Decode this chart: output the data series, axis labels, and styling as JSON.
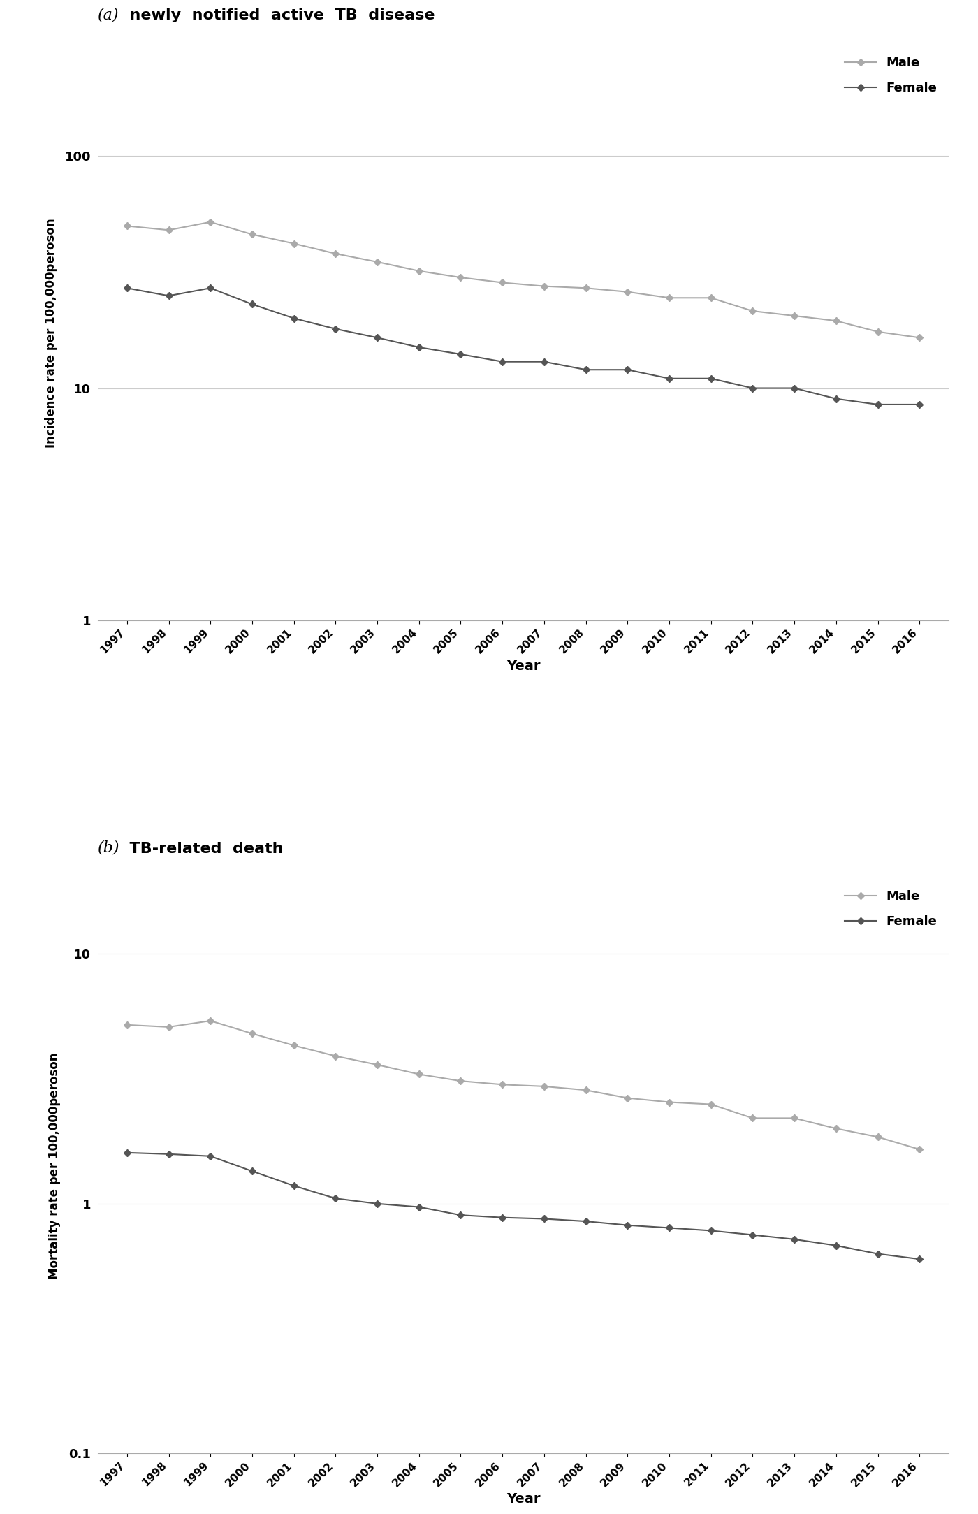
{
  "years": [
    1997,
    1998,
    1999,
    2000,
    2001,
    2002,
    2003,
    2004,
    2005,
    2006,
    2007,
    2008,
    2009,
    2010,
    2011,
    2012,
    2013,
    2014,
    2015,
    2016
  ],
  "incidence_male": [
    50,
    48,
    52,
    46,
    42,
    38,
    35,
    32,
    30,
    28.5,
    27.5,
    27,
    26,
    24.5,
    24.5,
    21.5,
    20.5,
    19.5,
    17.5,
    16.5
  ],
  "incidence_female": [
    27,
    25,
    27,
    23,
    20,
    18,
    16.5,
    15,
    14,
    13,
    13,
    12,
    12,
    11,
    11,
    10,
    10,
    9,
    8.5,
    8.5
  ],
  "mortality_male": [
    5.2,
    5.1,
    5.4,
    4.8,
    4.3,
    3.9,
    3.6,
    3.3,
    3.1,
    3.0,
    2.95,
    2.85,
    2.65,
    2.55,
    2.5,
    2.2,
    2.2,
    2.0,
    1.85,
    1.65
  ],
  "mortality_female": [
    1.6,
    1.58,
    1.55,
    1.35,
    1.18,
    1.05,
    1.0,
    0.97,
    0.9,
    0.88,
    0.87,
    0.85,
    0.82,
    0.8,
    0.78,
    0.75,
    0.72,
    0.68,
    0.63,
    0.6
  ],
  "male_color": "#aaaaaa",
  "female_color": "#555555",
  "title_a_italic": "(a)",
  "title_a_rest": "  newly  notified  active  TB  disease",
  "title_b_italic": "(b)",
  "title_b_rest": "  TB-related  death",
  "ylabel_a": "Incidence rate per 100,000peroson",
  "ylabel_b": "Mortality rate per 100,000peroson",
  "xlabel": "Year",
  "background_color": "#ffffff",
  "grid_color": "#cccccc",
  "spine_color": "#aaaaaa"
}
